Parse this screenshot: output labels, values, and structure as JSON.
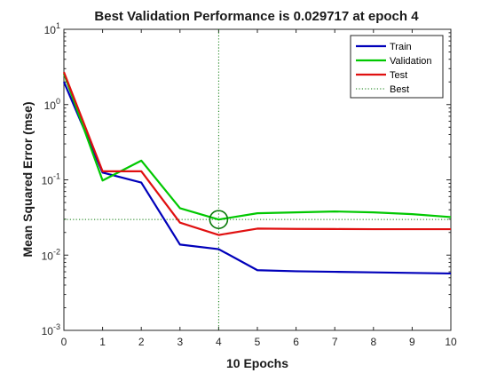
{
  "chart_data": {
    "type": "line",
    "title": "Best Validation Performance is 0.029717 at epoch 4",
    "xlabel": "10 Epochs",
    "ylabel": "Mean Squared Error  (mse)",
    "xlim": [
      0,
      10
    ],
    "ylim": [
      0.001,
      10
    ],
    "yscale": "log",
    "grid": false,
    "legend_position": "top-right",
    "x": [
      0,
      1,
      2,
      3,
      4,
      5,
      6,
      7,
      8,
      9,
      10
    ],
    "x_ticks": [
      "0",
      "1",
      "2",
      "3",
      "4",
      "5",
      "6",
      "7",
      "8",
      "9",
      "10"
    ],
    "y_ticks": [
      {
        "value": 10,
        "base": "10",
        "exp": "1"
      },
      {
        "value": 1,
        "base": "10",
        "exp": "0"
      },
      {
        "value": 0.1,
        "base": "10",
        "exp": "-1"
      },
      {
        "value": 0.01,
        "base": "10",
        "exp": "-2"
      },
      {
        "value": 0.001,
        "base": "10",
        "exp": "-3"
      }
    ],
    "series": [
      {
        "name": "Train",
        "color": "#0000ba",
        "style": "solid",
        "values": [
          2.0,
          0.125,
          0.092,
          0.0138,
          0.012,
          0.0063,
          0.0061,
          0.006,
          0.0059,
          0.0058,
          0.0057
        ]
      },
      {
        "name": "Validation",
        "color": "#00c800",
        "style": "solid",
        "values": [
          2.6,
          0.098,
          0.18,
          0.042,
          0.029717,
          0.036,
          0.037,
          0.038,
          0.037,
          0.035,
          0.032
        ]
      },
      {
        "name": "Test",
        "color": "#e01010",
        "style": "solid",
        "values": [
          2.7,
          0.13,
          0.13,
          0.027,
          0.0185,
          0.0225,
          0.0223,
          0.0222,
          0.0221,
          0.0221,
          0.0221
        ]
      },
      {
        "name": "Best",
        "color": "#0a7a0a",
        "style": "dotted"
      }
    ],
    "best": {
      "epoch": 4,
      "value": 0.029717,
      "color": "#0a7a0a"
    }
  }
}
